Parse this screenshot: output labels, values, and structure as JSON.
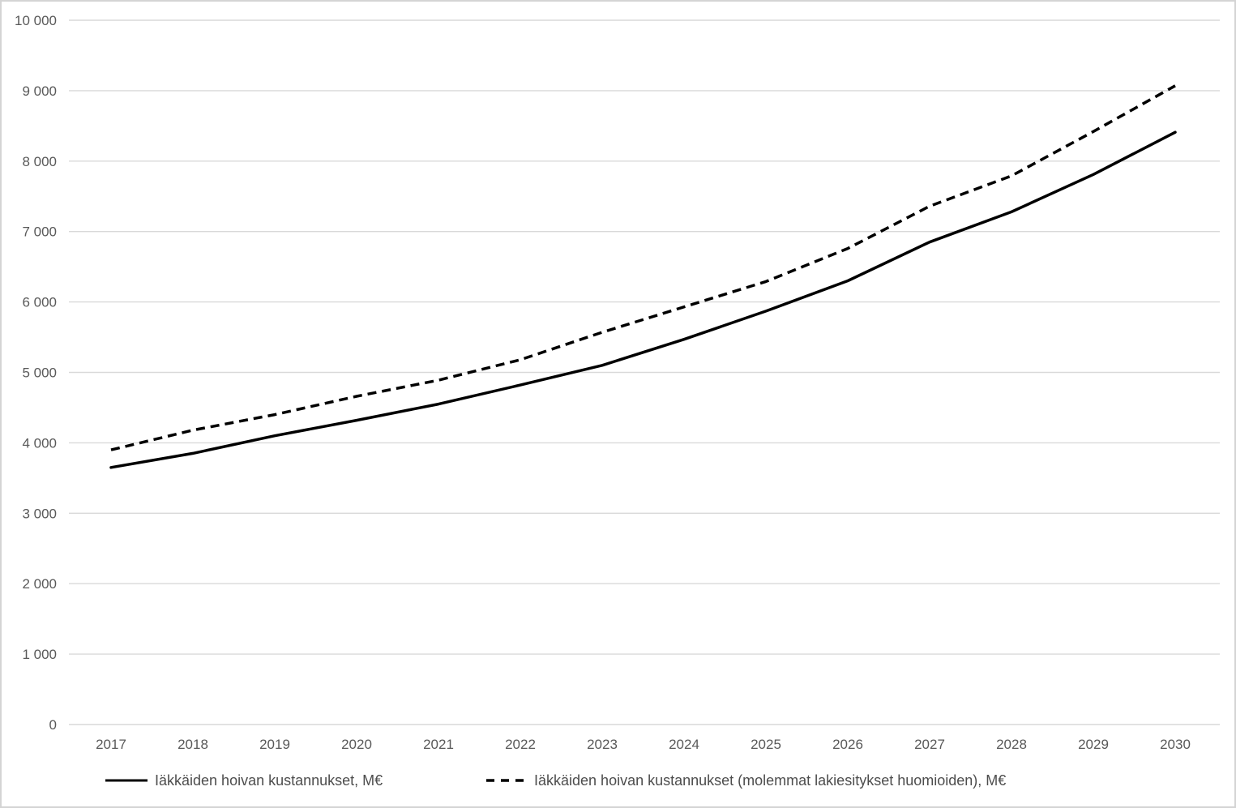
{
  "chart_data": {
    "type": "line",
    "title": "",
    "xlabel": "",
    "ylabel": "",
    "categories": [
      "2017",
      "2018",
      "2019",
      "2020",
      "2021",
      "2022",
      "2023",
      "2024",
      "2025",
      "2026",
      "2027",
      "2028",
      "2029",
      "2030"
    ],
    "series": [
      {
        "name": "Iäkkäiden hoivan kustannukset, M€",
        "line_style": "solid",
        "color": "#000000",
        "values": [
          3650,
          3850,
          4100,
          4320,
          4550,
          4820,
          5100,
          5470,
          5870,
          6300,
          6850,
          7280,
          7810,
          8410
        ]
      },
      {
        "name": "Iäkkäiden hoivan kustannukset (molemmat lakiesitykset huomioiden), M€",
        "line_style": "dashed",
        "color": "#000000",
        "values": [
          3900,
          4180,
          4400,
          4660,
          4890,
          5180,
          5570,
          5930,
          6290,
          6760,
          7360,
          7790,
          8420,
          9070
        ]
      }
    ],
    "ylim": [
      0,
      10000
    ],
    "ytick_step": 1000,
    "ytick_labels": [
      "0",
      "1 000",
      "2 000",
      "3 000",
      "4 000",
      "5 000",
      "6 000",
      "7 000",
      "8 000",
      "9 000",
      "10 000"
    ],
    "grid": true,
    "legend_position": "bottom",
    "colors": {
      "axis_label": "#595959",
      "gridline": "#d9d9d9",
      "axis_line": "#d9d9d9",
      "border": "#d4d4d4",
      "background": "#ffffff"
    }
  }
}
